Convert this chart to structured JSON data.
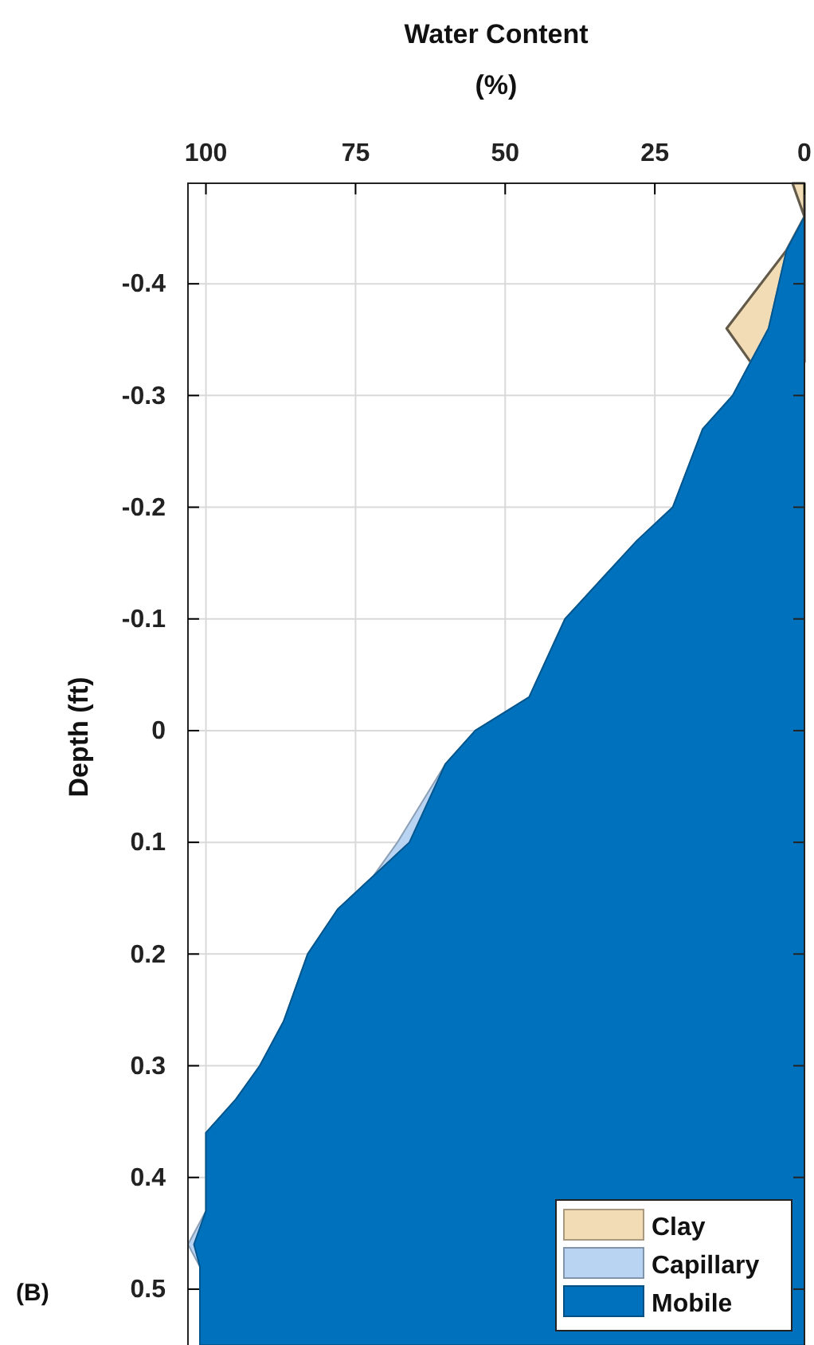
{
  "chart_data": {
    "type": "area",
    "orientation": "horizontal",
    "stacked": true,
    "xlabel": "Water Content\n(%)",
    "ylabel": "Depth (ft)",
    "annotations": [
      "(B)"
    ],
    "x": [
      -0.49,
      -0.46,
      -0.43,
      -0.36,
      -0.33,
      -0.3,
      -0.27,
      -0.2,
      -0.17,
      -0.1,
      -0.03,
      0.0,
      0.03,
      0.1,
      0.13,
      0.16,
      0.2,
      0.26,
      0.3,
      0.33,
      0.36,
      0.43,
      0.46,
      0.48,
      0.55
    ],
    "series": [
      {
        "name": "Mobile",
        "color": "#0072bd",
        "values": [
          0,
          0,
          3,
          6,
          9,
          12,
          17,
          22,
          28,
          40,
          46,
          55,
          60,
          66,
          72,
          78,
          83,
          87,
          91,
          95,
          100,
          100,
          102,
          101,
          101
        ]
      },
      {
        "name": "Capillary",
        "color": "#b9d3f2",
        "values": [
          0,
          0,
          0,
          0,
          0,
          0,
          0,
          0,
          0,
          0,
          0,
          0,
          0,
          2,
          0,
          0,
          0,
          0,
          0,
          0,
          0,
          0,
          1,
          0,
          0
        ]
      },
      {
        "name": "Clay",
        "color": "#f2dcb5",
        "values": [
          2,
          0,
          0,
          7,
          0,
          null,
          null,
          null,
          null,
          null,
          null,
          null,
          null,
          null,
          null,
          null,
          null,
          null,
          null,
          null,
          null,
          null,
          null,
          null,
          null
        ]
      }
    ],
    "xlim": [
      103,
      0
    ],
    "xticks": [
      100,
      75,
      50,
      25,
      0
    ],
    "ylim": [
      0.55,
      -0.49
    ],
    "yticks": [
      -0.4,
      -0.3,
      -0.2,
      -0.1,
      0,
      0.1,
      0.2,
      0.3,
      0.4,
      0.5
    ],
    "grid": true,
    "legend": "bottom right"
  }
}
